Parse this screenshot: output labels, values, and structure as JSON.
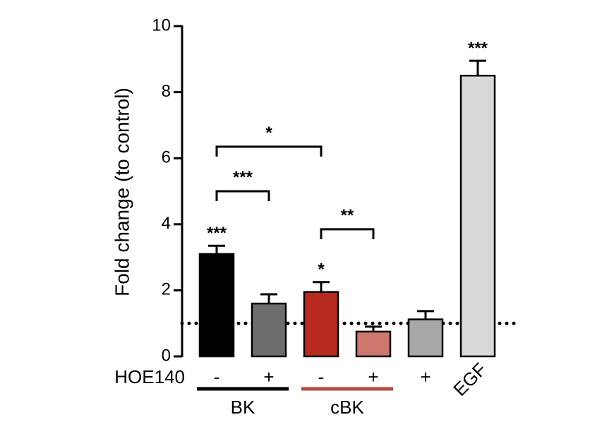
{
  "chart_data": {
    "type": "bar",
    "ylabel": "Fold change (to control)",
    "ylim": [
      0,
      10
    ],
    "yticks": [
      "0",
      "2",
      "4",
      "6",
      "8",
      "10"
    ],
    "row_label": "HOE140",
    "reference_line": 1,
    "bars": [
      {
        "condition": "-",
        "value": 3.1,
        "error": 0.25,
        "color": "#000000",
        "significance": "***"
      },
      {
        "condition": "+",
        "value": 1.6,
        "error": 0.28,
        "color": "#6d6d6d",
        "significance": ""
      },
      {
        "condition": "-",
        "value": 1.95,
        "error": 0.3,
        "color": "#b8291e",
        "significance": "*"
      },
      {
        "condition": "+",
        "value": 0.75,
        "error": 0.15,
        "color": "#cd776f",
        "significance": ""
      },
      {
        "condition": "+",
        "value": 1.12,
        "error": 0.25,
        "color": "#a8a8a8",
        "significance": ""
      },
      {
        "condition": "EGF",
        "value": 8.5,
        "error": 0.45,
        "color": "#d9d9d9",
        "significance": "***"
      }
    ],
    "groups": [
      {
        "label": "BK",
        "bars": [
          0,
          1
        ],
        "color": "#000000"
      },
      {
        "label": "cBK",
        "bars": [
          2,
          3
        ],
        "color": "#b54a40"
      }
    ],
    "comparisons": [
      {
        "from": 0,
        "to": 1,
        "y": 5.0,
        "label": "***"
      },
      {
        "from": 0,
        "to": 2,
        "y": 6.35,
        "label": "*"
      },
      {
        "from": 2,
        "to": 3,
        "y": 3.85,
        "label": "**"
      }
    ]
  }
}
